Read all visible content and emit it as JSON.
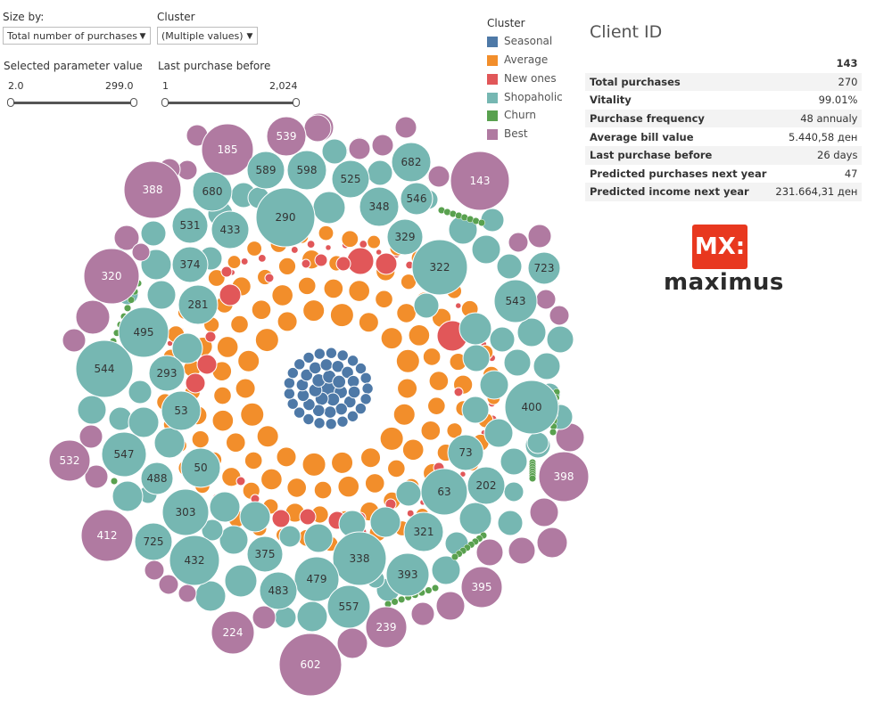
{
  "colors": {
    "seasonal": "#4e79a7",
    "average": "#f28e2b",
    "new": "#e15759",
    "shopaholic": "#76b7b2",
    "churn": "#59a14f",
    "best": "#b07aa1",
    "logo_red": "#e8381f"
  },
  "controls": {
    "size_by_label": "Size by:",
    "size_by_value": "Total number of purchases",
    "cluster_label": "Cluster",
    "cluster_value": "(Multiple values)",
    "param_label": "Selected parameter value",
    "param_min": "2.0",
    "param_max": "299.0",
    "last_label": "Last purchase before",
    "last_min": "1",
    "last_max": "2,024"
  },
  "legend": {
    "title": "Cluster",
    "items": [
      {
        "label": "Seasonal",
        "color": "#4e79a7"
      },
      {
        "label": "Average",
        "color": "#f28e2b"
      },
      {
        "label": "New ones",
        "color": "#e15759"
      },
      {
        "label": "Shopaholic",
        "color": "#76b7b2"
      },
      {
        "label": "Churn",
        "color": "#59a14f"
      },
      {
        "label": "Best",
        "color": "#b07aa1"
      }
    ]
  },
  "client": {
    "title": "Client ID",
    "id": "143",
    "rows": [
      {
        "k": "Total purchases",
        "v": "270"
      },
      {
        "k": "Vitality",
        "v": "99.01%"
      },
      {
        "k": "Purchase frequency",
        "v": "48 annualy"
      },
      {
        "k": "Average bill value",
        "v": "5.440,58 ден"
      },
      {
        "k": "Last purchase before",
        "v": "26 days"
      },
      {
        "k": "Predicted purchases next year",
        "v": "47"
      },
      {
        "k": "Predicted income next year",
        "v": "231.664,31 ден"
      }
    ]
  },
  "logo": {
    "mark": "MX:",
    "name": "maximus"
  },
  "bubbles": {
    "labels": [
      "185",
      "539",
      "589",
      "598",
      "525",
      "682",
      "143",
      "388",
      "680",
      "531",
      "433",
      "290",
      "348",
      "546",
      "329",
      "320",
      "374",
      "322",
      "723",
      "281",
      "543",
      "495",
      "544",
      "293",
      "53",
      "400",
      "532",
      "547",
      "73",
      "398",
      "488",
      "50",
      "63",
      "202",
      "412",
      "303",
      "725",
      "321",
      "432",
      "375",
      "338",
      "479",
      "393",
      "483",
      "557",
      "395",
      "224",
      "239",
      "602"
    ]
  }
}
